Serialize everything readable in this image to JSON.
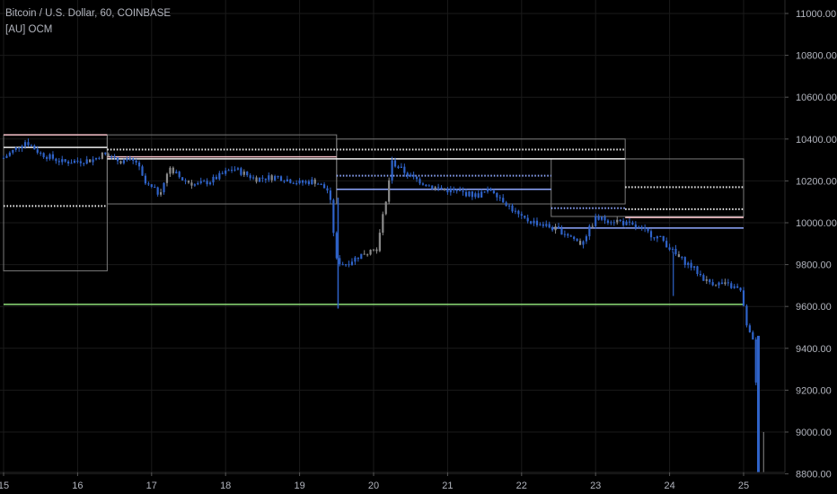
{
  "header": {
    "symbol_title": "Bitcoin / U.S. Dollar, 60, COINBASE",
    "indicator_label": "[AU] OCM"
  },
  "colors": {
    "background": "#000000",
    "candle": "#2f63c9",
    "candle_alt": "#8a8a8a",
    "axis_text": "#b2b5be",
    "grid": "#1a1a1a",
    "support_line": "#8fe07a",
    "level_white": "#f0f0f0",
    "level_pink": "#f6c0c8",
    "level_blue": "#8fa8ff",
    "box_gray": "#7a7a7a"
  },
  "chart_data": {
    "type": "candlestick",
    "title": "Bitcoin / U.S. Dollar, 60, COINBASE",
    "indicator": "[AU] OCM",
    "x_tick_labels": [
      "15",
      "16",
      "17",
      "18",
      "19",
      "20",
      "21",
      "22",
      "23",
      "24",
      "25"
    ],
    "y_tick_labels": [
      "11000.00",
      "10800.00",
      "10600.00",
      "10400.00",
      "10200.00",
      "10000.00",
      "9800.00",
      "9600.00",
      "9400.00",
      "9200.00",
      "9000.00",
      "8800.00"
    ],
    "ylim": [
      8800,
      11000
    ],
    "xlim": [
      15.0,
      25.6
    ],
    "price_path": [
      [
        15.0,
        10310
      ],
      [
        15.3,
        10390
      ],
      [
        15.5,
        10330
      ],
      [
        15.8,
        10290
      ],
      [
        16.2,
        10300
      ],
      [
        16.35,
        10330
      ],
      [
        16.5,
        10300
      ],
      [
        16.8,
        10290
      ],
      [
        16.9,
        10190
      ],
      [
        17.1,
        10140
      ],
      [
        17.25,
        10260
      ],
      [
        17.4,
        10210
      ],
      [
        17.6,
        10180
      ],
      [
        17.8,
        10200
      ],
      [
        18.1,
        10260
      ],
      [
        18.4,
        10210
      ],
      [
        18.7,
        10220
      ],
      [
        19.0,
        10190
      ],
      [
        19.2,
        10200
      ],
      [
        19.4,
        10150
      ],
      [
        19.5,
        9820
      ],
      [
        19.6,
        9800
      ],
      [
        19.9,
        9860
      ],
      [
        20.05,
        9880
      ],
      [
        20.15,
        10080
      ],
      [
        20.25,
        10290
      ],
      [
        20.5,
        10220
      ],
      [
        20.8,
        10170
      ],
      [
        21.1,
        10150
      ],
      [
        21.4,
        10130
      ],
      [
        21.6,
        10160
      ],
      [
        21.8,
        10090
      ],
      [
        22.0,
        10020
      ],
      [
        22.3,
        9990
      ],
      [
        22.6,
        9950
      ],
      [
        22.8,
        9900
      ],
      [
        23.0,
        10020
      ],
      [
        23.3,
        10010
      ],
      [
        23.6,
        9970
      ],
      [
        23.9,
        9920
      ],
      [
        24.1,
        9840
      ],
      [
        24.3,
        9790
      ],
      [
        24.5,
        9720
      ],
      [
        24.8,
        9700
      ],
      [
        24.95,
        9680
      ],
      [
        25.0,
        9610
      ],
      [
        25.05,
        9480
      ],
      [
        25.15,
        9440
      ],
      [
        25.2,
        8800
      ]
    ],
    "horizontal_levels": [
      {
        "style": "solid",
        "color": "support_line",
        "x": [
          15.0,
          25.0
        ],
        "y": 9610
      },
      {
        "style": "dotted",
        "color": "level_white",
        "x": [
          15.0,
          16.4
        ],
        "y": 10080
      },
      {
        "style": "dotted",
        "color": "level_white",
        "x": [
          16.4,
          23.4
        ],
        "y": 10350
      },
      {
        "style": "dotted",
        "color": "level_white",
        "x": [
          23.4,
          25.0
        ],
        "y": 10170
      },
      {
        "style": "dotted",
        "color": "level_white",
        "x": [
          23.4,
          25.0
        ],
        "y": 10065
      },
      {
        "style": "dotted",
        "color": "level_blue",
        "x": [
          19.5,
          22.4
        ],
        "y": 10225
      },
      {
        "style": "dotted",
        "color": "level_blue",
        "x": [
          22.4,
          23.4
        ],
        "y": 10070
      },
      {
        "style": "solid",
        "color": "level_white",
        "x": [
          16.4,
          23.4
        ],
        "y": 10305
      },
      {
        "style": "solid",
        "color": "level_pink",
        "x": [
          16.4,
          19.5
        ],
        "y": 10315
      },
      {
        "style": "solid",
        "color": "level_pink",
        "x": [
          23.4,
          25.0
        ],
        "y": 10025
      },
      {
        "style": "solid",
        "color": "level_blue",
        "x": [
          23.4,
          25.0
        ],
        "y": 9975
      },
      {
        "style": "solid",
        "color": "level_blue",
        "x": [
          19.5,
          22.4
        ],
        "y": 10160
      },
      {
        "style": "solid",
        "color": "level_blue",
        "x": [
          22.4,
          23.4
        ],
        "y": 9975
      },
      {
        "style": "solid",
        "color": "level_white",
        "x": [
          15.0,
          16.4
        ],
        "y": 10360
      },
      {
        "style": "solid",
        "color": "level_pink",
        "x": [
          15.0,
          16.4
        ],
        "y": 10420
      }
    ],
    "range_boxes": [
      {
        "x": [
          15.0,
          16.4
        ],
        "y": [
          9770,
          10420
        ]
      },
      {
        "x": [
          16.4,
          19.5
        ],
        "y": [
          10090,
          10420
        ]
      },
      {
        "x": [
          19.5,
          23.4
        ],
        "y": [
          10090,
          10400
        ]
      },
      {
        "x": [
          22.4,
          25.0
        ],
        "y": [
          10030,
          10305
        ]
      }
    ]
  }
}
